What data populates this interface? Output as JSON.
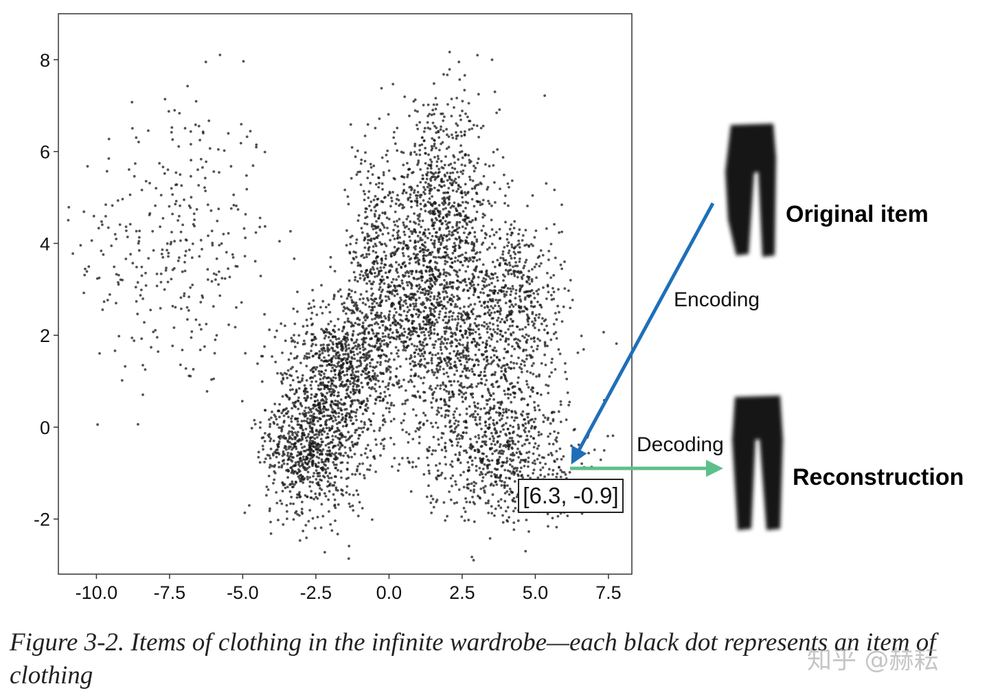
{
  "chart_data": {
    "type": "scatter",
    "title": "",
    "xlabel": "",
    "ylabel": "",
    "xlim": [
      -11.3,
      8.3
    ],
    "ylim": [
      -3.2,
      9.0
    ],
    "x_ticks": [
      "-10.0",
      "-7.5",
      "-5.0",
      "-2.5",
      "0.0",
      "2.5",
      "5.0",
      "7.5"
    ],
    "x_tick_values": [
      -10.0,
      -7.5,
      -5.0,
      -2.5,
      0.0,
      2.5,
      5.0,
      7.5
    ],
    "y_ticks": [
      "-2",
      "0",
      "2",
      "4",
      "6",
      "8"
    ],
    "y_tick_values": [
      -2,
      0,
      2,
      4,
      6,
      8
    ],
    "grid": false,
    "point_color": "#1a1a1a",
    "approx_point_count": 5500,
    "clusters": [
      {
        "cx": -7.3,
        "cy": 4.0,
        "sx": 1.7,
        "sy": 1.7,
        "n": 330
      },
      {
        "cx": -2.2,
        "cy": 0.3,
        "sx": 0.9,
        "sy": 1.1,
        "n": 900
      },
      {
        "cx": -3.0,
        "cy": -0.6,
        "sx": 0.6,
        "sy": 0.6,
        "n": 350
      },
      {
        "cx": -1.2,
        "cy": 1.5,
        "sx": 0.7,
        "sy": 0.8,
        "n": 400
      },
      {
        "cx": -0.5,
        "cy": 3.5,
        "sx": 0.5,
        "sy": 1.3,
        "n": 300
      },
      {
        "cx": 1.7,
        "cy": 4.6,
        "sx": 1.0,
        "sy": 1.2,
        "n": 900
      },
      {
        "cx": 1.0,
        "cy": 2.4,
        "sx": 0.9,
        "sy": 1.0,
        "n": 600
      },
      {
        "cx": 3.2,
        "cy": 1.4,
        "sx": 1.4,
        "sy": 1.2,
        "n": 900
      },
      {
        "cx": 4.3,
        "cy": 3.1,
        "sx": 0.8,
        "sy": 0.8,
        "n": 300
      },
      {
        "cx": 3.8,
        "cy": -0.7,
        "sx": 1.3,
        "sy": 0.7,
        "n": 550
      }
    ],
    "annotations": {
      "point_label": "[6.3, -0.9]",
      "point": [
        6.3,
        -0.9
      ],
      "encoding_label": "Encoding",
      "decoding_label": "Decoding",
      "original_label": "Original item",
      "reconstruction_label": "Reconstruction"
    },
    "colors": {
      "encoding_arrow": "#1f6fb8",
      "decoding_arrow": "#5dbf8a",
      "axes": "#333333"
    }
  },
  "caption": "Figure 3-2. Items of clothing in the infinite wardrobe—each black dot represents an item of clothing",
  "watermark": "知乎 @赫耘"
}
